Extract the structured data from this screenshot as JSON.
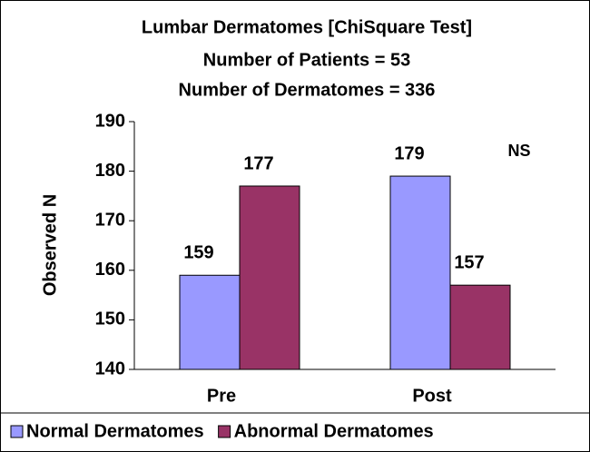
{
  "chart_data": {
    "type": "bar",
    "title": "Lumbar Dermatomes [ChiSquare Test]",
    "subtitle": [
      "Number of Patients = 53",
      "Number of Dermatomes = 336"
    ],
    "ylabel": "Observed N",
    "annotation": "NS",
    "categories": [
      "Pre",
      "Post"
    ],
    "series": [
      {
        "name": "Normal Dermatomes",
        "color": "#9999ff",
        "values": [
          159,
          179
        ]
      },
      {
        "name": "Abnormal Dermatomes",
        "color": "#993366",
        "values": [
          177,
          157
        ]
      }
    ],
    "ylim": [
      140,
      190
    ],
    "yticks": [
      140,
      150,
      160,
      170,
      180,
      190
    ],
    "legend": "bottom"
  }
}
